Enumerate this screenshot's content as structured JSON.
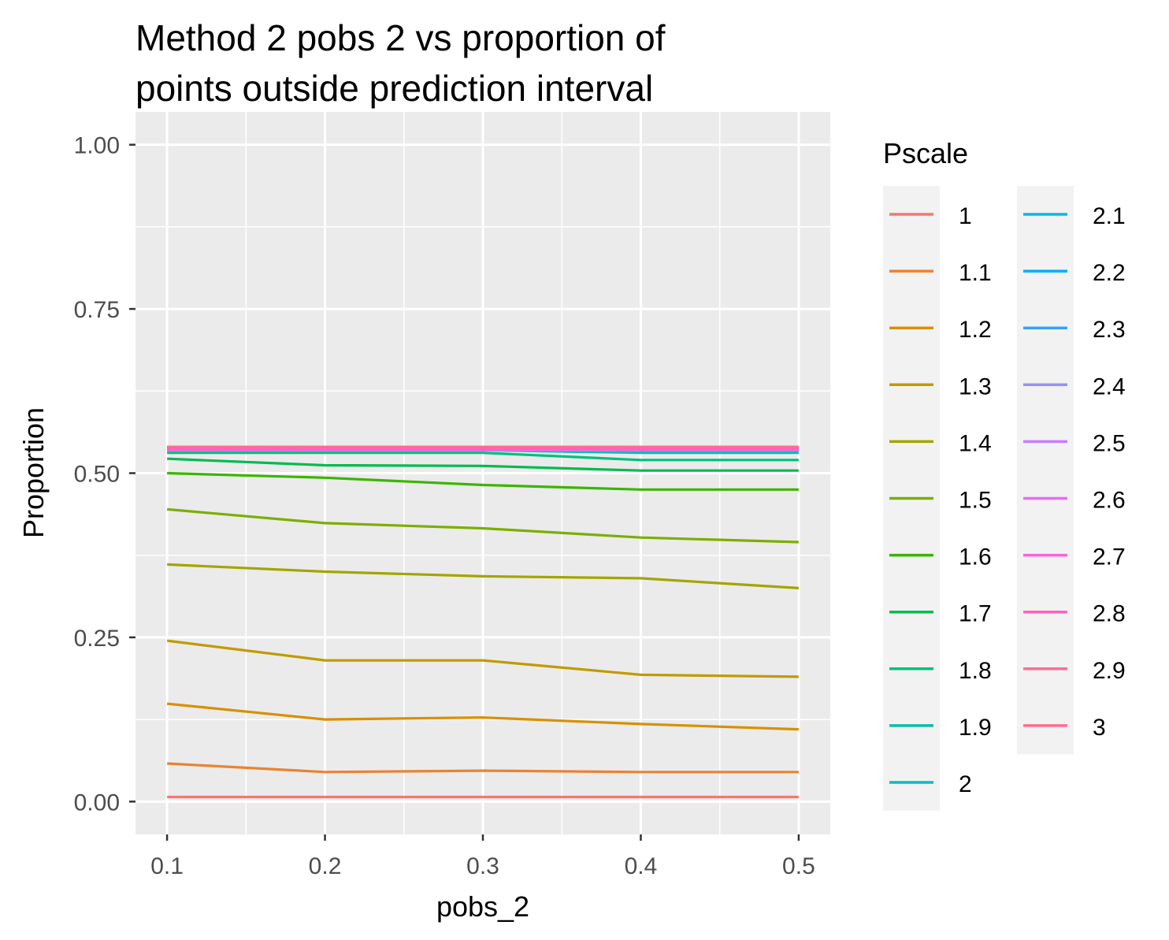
{
  "chart_data": {
    "type": "line",
    "title_lines": [
      "Method 2 pobs 2 vs proportion of",
      "points outside prediction interval"
    ],
    "xlabel": "pobs_2",
    "ylabel": "Proportion",
    "x": [
      0.1,
      0.2,
      0.3,
      0.4,
      0.5
    ],
    "x_tick_labels": [
      "0.1",
      "0.2",
      "0.3",
      "0.4",
      "0.5"
    ],
    "y_tick_labels": [
      "0.00",
      "0.25",
      "0.50",
      "0.75",
      "1.00"
    ],
    "y_ticks": [
      0,
      0.25,
      0.5,
      0.75,
      1.0
    ],
    "xlim": [
      0.08,
      0.52
    ],
    "ylim": [
      -0.05,
      1.05
    ],
    "grid": true,
    "legend": {
      "title": "Pscale",
      "placement": "right",
      "columns": 2
    },
    "series": [
      {
        "name": "1",
        "color": "#F8766D",
        "values": [
          0.007,
          0.007,
          0.007,
          0.007,
          0.007
        ]
      },
      {
        "name": "1.1",
        "color": "#EA8331",
        "values": [
          0.058,
          0.045,
          0.047,
          0.045,
          0.045
        ]
      },
      {
        "name": "1.2",
        "color": "#D89000",
        "values": [
          0.149,
          0.125,
          0.128,
          0.118,
          0.11
        ]
      },
      {
        "name": "1.3",
        "color": "#C09B00",
        "values": [
          0.245,
          0.215,
          0.215,
          0.193,
          0.19
        ]
      },
      {
        "name": "1.4",
        "color": "#A3A500",
        "values": [
          0.361,
          0.35,
          0.343,
          0.34,
          0.325
        ]
      },
      {
        "name": "1.5",
        "color": "#7CAE00",
        "values": [
          0.445,
          0.424,
          0.416,
          0.402,
          0.395
        ]
      },
      {
        "name": "1.6",
        "color": "#39B600",
        "values": [
          0.5,
          0.493,
          0.482,
          0.475,
          0.475
        ]
      },
      {
        "name": "1.7",
        "color": "#00BB4E",
        "values": [
          0.522,
          0.512,
          0.511,
          0.504,
          0.504
        ]
      },
      {
        "name": "1.8",
        "color": "#00BF7D",
        "values": [
          0.531,
          0.531,
          0.531,
          0.52,
          0.52
        ]
      },
      {
        "name": "1.9",
        "color": "#00C1A3",
        "values": [
          0.535,
          0.535,
          0.535,
          0.531,
          0.531
        ]
      },
      {
        "name": "2",
        "color": "#00BFC4",
        "values": [
          0.535,
          0.535,
          0.535,
          0.533,
          0.533
        ]
      },
      {
        "name": "2.1",
        "color": "#00BAE0",
        "values": [
          0.535,
          0.535,
          0.535,
          0.535,
          0.535
        ]
      },
      {
        "name": "2.2",
        "color": "#00B0F6",
        "values": [
          0.535,
          0.535,
          0.535,
          0.535,
          0.535
        ]
      },
      {
        "name": "2.3",
        "color": "#35A2FF",
        "values": [
          0.535,
          0.535,
          0.535,
          0.535,
          0.535
        ]
      },
      {
        "name": "2.4",
        "color": "#9590FF",
        "values": [
          0.535,
          0.535,
          0.535,
          0.535,
          0.535
        ]
      },
      {
        "name": "2.5",
        "color": "#C77CFF",
        "values": [
          0.536,
          0.536,
          0.536,
          0.536,
          0.536
        ]
      },
      {
        "name": "2.6",
        "color": "#E76BF3",
        "values": [
          0.536,
          0.536,
          0.536,
          0.536,
          0.536
        ]
      },
      {
        "name": "2.7",
        "color": "#FA62DB",
        "values": [
          0.536,
          0.536,
          0.536,
          0.536,
          0.536
        ]
      },
      {
        "name": "2.8",
        "color": "#FF62BC",
        "values": [
          0.537,
          0.537,
          0.537,
          0.537,
          0.537
        ]
      },
      {
        "name": "2.9",
        "color": "#FF6C91",
        "values": [
          0.54,
          0.54,
          0.54,
          0.54,
          0.54
        ]
      },
      {
        "name": "3",
        "color": "#FF6C91",
        "values": [
          0.54,
          0.54,
          0.54,
          0.54,
          0.54
        ]
      }
    ]
  }
}
